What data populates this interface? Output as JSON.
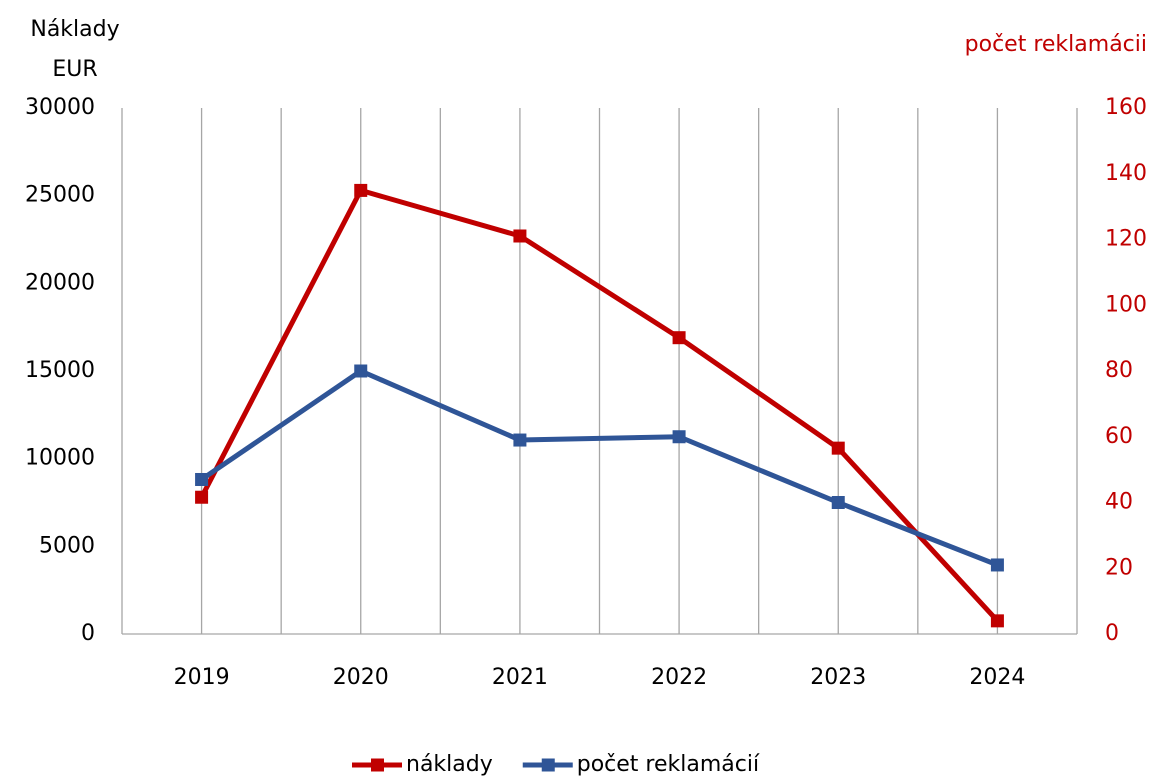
{
  "chart_data": {
    "type": "line",
    "y_label": [
      "Náklady",
      "EUR"
    ],
    "y2_label": "počet reklamácii",
    "categories": [
      "2019",
      "2020",
      "2021",
      "2022",
      "2023",
      "2024"
    ],
    "series": [
      {
        "name": "náklady",
        "color": "#c00000",
        "axis": "y",
        "values": [
          7800,
          25300,
          22700,
          16900,
          10600,
          750
        ]
      },
      {
        "name": "počet reklamácií",
        "color": "#2f5597",
        "axis": "y2",
        "values": [
          47,
          80,
          59,
          60,
          40,
          21
        ]
      }
    ],
    "ylim": [
      0,
      30000
    ],
    "yticks": [
      0,
      5000,
      10000,
      15000,
      20000,
      25000,
      30000
    ],
    "y2lim": [
      0,
      160
    ],
    "y2ticks": [
      0,
      20,
      40,
      60,
      80,
      100,
      120,
      140,
      160
    ],
    "y2_color": "#c00000",
    "legend": "bottom"
  }
}
